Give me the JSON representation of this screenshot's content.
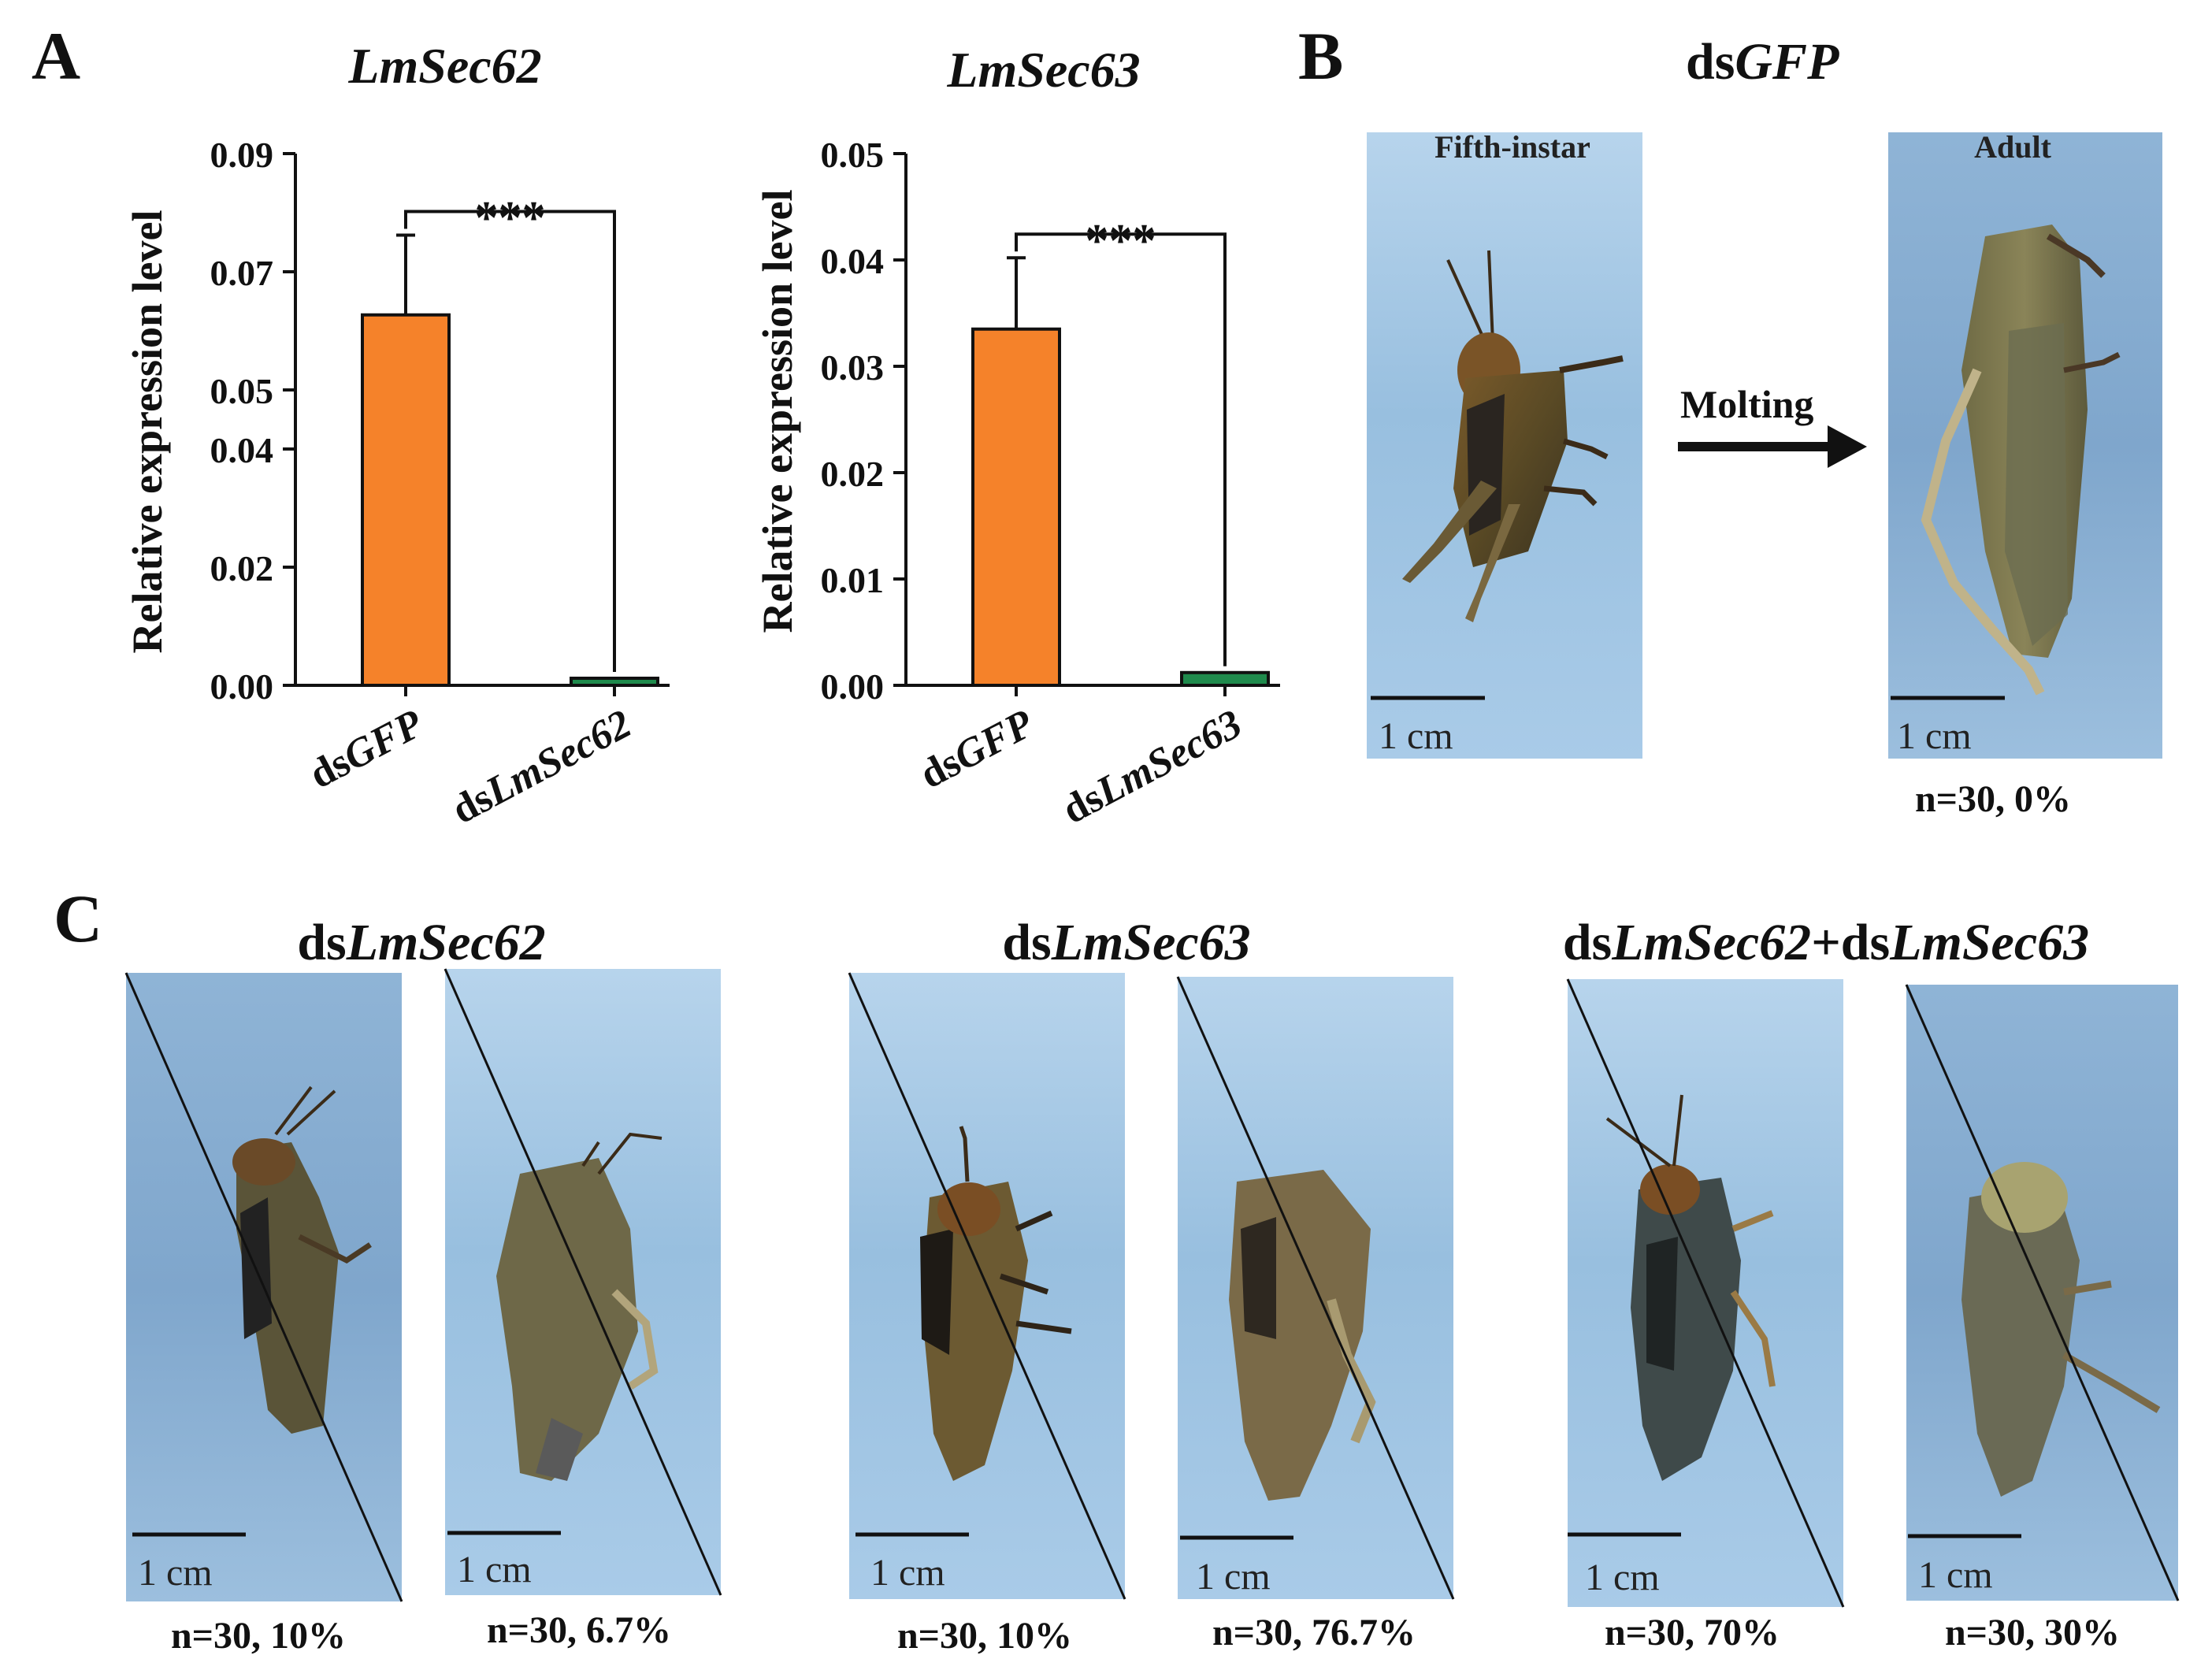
{
  "panels": {
    "A": {
      "letter": "A",
      "charts": [
        {
          "title": "LmSec62",
          "ylabel": "Relative expression level",
          "significance": "***",
          "ticks": [
            "0.00",
            "0.02",
            "0.04",
            "0.05",
            "0.07",
            "0.09"
          ],
          "cat_prefix": [
            "ds",
            "ds"
          ],
          "cat_italic": [
            "GFP",
            "LmSec62"
          ]
        },
        {
          "title": "LmSec63",
          "ylabel": "Relative expression level",
          "significance": "***",
          "ticks": [
            "0.00",
            "0.01",
            "0.02",
            "0.03",
            "0.04",
            "0.05"
          ],
          "cat_prefix": [
            "ds",
            "ds"
          ],
          "cat_italic": [
            "GFP",
            "LmSec63"
          ]
        }
      ]
    },
    "B": {
      "letter": "B",
      "title_prefix": "ds",
      "title_italic": "GFP",
      "left_label": "Fifth-instar",
      "right_label": "Adult",
      "arrow_label": "Molting",
      "scale": [
        "1 cm",
        "1 cm"
      ],
      "caption": "n=30, 0%"
    },
    "C": {
      "letter": "C",
      "groups": [
        {
          "parts": [
            {
              "t": "ds",
              "i": false
            },
            {
              "t": "LmSec62",
              "i": true
            }
          ],
          "captions": [
            "n=30, 10%",
            "n=30, 6.7%"
          ],
          "scale": [
            "1 cm",
            "1 cm"
          ]
        },
        {
          "parts": [
            {
              "t": "ds",
              "i": false
            },
            {
              "t": "LmSec63",
              "i": true
            }
          ],
          "captions": [
            "n=30, 10%",
            "n=30, 76.7%"
          ],
          "scale": [
            "1 cm",
            "1 cm"
          ]
        },
        {
          "parts": [
            {
              "t": "ds",
              "i": false
            },
            {
              "t": "LmSec62",
              "i": true
            },
            {
              "t": "+ds",
              "i": false
            },
            {
              "t": "LmSec63",
              "i": true
            }
          ],
          "captions": [
            "n=30, 70%",
            "n=30, 30%"
          ],
          "scale": [
            "1 cm",
            "1 cm"
          ]
        }
      ]
    }
  },
  "chart_data": [
    {
      "type": "bar",
      "title": "LmSec62",
      "xlabel": "",
      "ylabel": "Relative expression level",
      "categories": [
        "dsGFP",
        "dsLmSec62"
      ],
      "values": [
        0.0627,
        0.0012
      ],
      "error": [
        0.0135,
        0.0003
      ],
      "ylim": [
        0,
        0.09
      ],
      "yticks": [
        0.0,
        0.02,
        0.04,
        0.05,
        0.07,
        0.09
      ],
      "significance": "***",
      "colors": [
        "#f5822a",
        "#1f8a4c"
      ]
    },
    {
      "type": "bar",
      "title": "LmSec63",
      "xlabel": "",
      "ylabel": "Relative expression level",
      "categories": [
        "dsGFP",
        "dsLmSec63"
      ],
      "values": [
        0.0335,
        0.0012
      ],
      "error": [
        0.0067,
        0.0002
      ],
      "ylim": [
        0,
        0.05
      ],
      "yticks": [
        0.0,
        0.01,
        0.02,
        0.03,
        0.04,
        0.05
      ],
      "significance": "***",
      "colors": [
        "#f5822a",
        "#1f8a4c"
      ]
    }
  ]
}
